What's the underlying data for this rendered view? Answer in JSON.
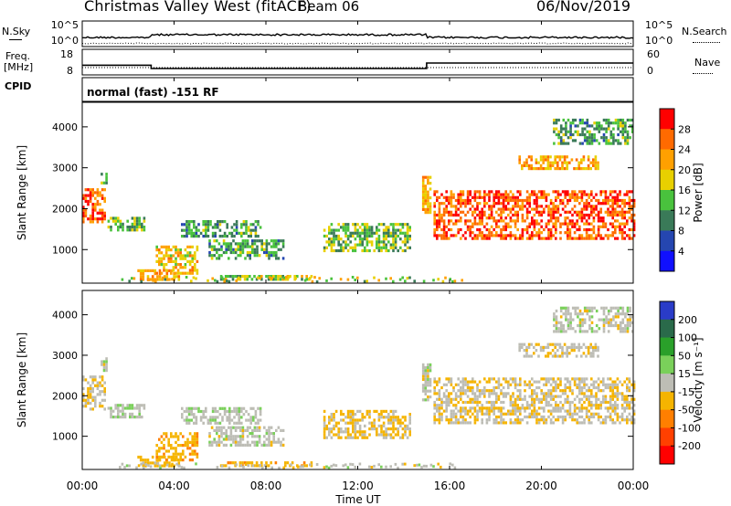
{
  "header": {
    "title": "Christmas Valley West (fitACF)",
    "beam": "Beam 06",
    "date": "06/Nov/2019"
  },
  "strips": {
    "nsky_label": "N.Sky",
    "nsky_ticks": [
      "10^5",
      "10^0"
    ],
    "nsearch_label": "N.Search",
    "nsearch_ticks": [
      "10^5",
      "10^0"
    ],
    "freq_label_1": "Freq.",
    "freq_label_2": "[MHz]",
    "freq_ticks": [
      "18",
      "8"
    ],
    "nave_label": "Nave",
    "nave_ticks": [
      "60",
      "0"
    ],
    "cpid_label": "CPID",
    "mode_text": "normal (fast) -151 RF"
  },
  "panels": {
    "power": {
      "ylabel": "Slant Range [km]",
      "yticks": [
        "4000",
        "3000",
        "2000",
        "1000"
      ],
      "cbar_label": "Power [dB]",
      "cbar_ticks": [
        "28",
        "24",
        "20",
        "16",
        "12",
        "8",
        "4"
      ],
      "cbar_colors": [
        "#ff0000",
        "#ff6a00",
        "#ffa000",
        "#e8d000",
        "#49c23d",
        "#3a7a58",
        "#2546b0",
        "#1010ff"
      ]
    },
    "velocity": {
      "ylabel": "Slant Range [km]",
      "yticks": [
        "4000",
        "3000",
        "2000",
        "1000"
      ],
      "cbar_label": "Velocity [m s⁻¹]",
      "cbar_ticks": [
        "200",
        "100",
        "50",
        "15",
        "-15",
        "-50",
        "-100",
        "-200"
      ],
      "cbar_colors": [
        "#2a3cc8",
        "#2a6a4a",
        "#2aa02a",
        "#7ad05a",
        "#bdbdb5",
        "#f5b400",
        "#ff7f00",
        "#ff4000",
        "#ff0000"
      ]
    }
  },
  "xaxis": {
    "label": "Time UT",
    "ticks": [
      "00:00",
      "04:00",
      "08:00",
      "12:00",
      "16:00",
      "20:00",
      "00:00"
    ]
  },
  "chart_data": {
    "type": "heatmap",
    "title": "Christmas Valley West (fitACF)",
    "beam": 6,
    "date": "06/Nov/2019",
    "xlabel": "Time UT",
    "ylabel": "Slant Range [km]",
    "x_range_hours": [
      0,
      24
    ],
    "y_range_km": [
      180,
      4600
    ],
    "frequency_segments_mhz": [
      {
        "start_hour": 0,
        "end_hour": 3,
        "freq": 12
      },
      {
        "start_hour": 3,
        "end_hour": 15,
        "freq": 10.5
      },
      {
        "start_hour": 15,
        "end_hour": 24,
        "freq": 13
      }
    ],
    "power_scale_db": [
      0,
      30
    ],
    "velocity_scale_ms": [
      -200,
      200
    ],
    "echo_regions": [
      {
        "t0": 0.0,
        "t1": 1.0,
        "r0": 1700,
        "r1": 2500,
        "power_db": 26,
        "velocity": -10
      },
      {
        "t0": 0.8,
        "t1": 1.1,
        "r0": 2600,
        "r1": 2950,
        "power_db": 14,
        "velocity": 0
      },
      {
        "t0": 1.1,
        "t1": 2.7,
        "r0": 1450,
        "r1": 1800,
        "power_db": 14,
        "velocity": 5
      },
      {
        "t0": 2.4,
        "t1": 4.2,
        "r0": 240,
        "r1": 520,
        "power_db": 22,
        "velocity": -30
      },
      {
        "t0": 3.2,
        "t1": 5.0,
        "r0": 400,
        "r1": 1100,
        "power_db": 20,
        "velocity": -40
      },
      {
        "t0": 4.3,
        "t1": 7.8,
        "r0": 1350,
        "r1": 1720,
        "power_db": 12,
        "velocity": 5
      },
      {
        "t0": 5.5,
        "t1": 8.8,
        "r0": 800,
        "r1": 1250,
        "power_db": 12,
        "velocity": 0
      },
      {
        "t0": 6.0,
        "t1": 10.0,
        "r0": 240,
        "r1": 380,
        "power_db": 16,
        "velocity": -40
      },
      {
        "t0": 10.5,
        "t1": 14.3,
        "r0": 1000,
        "r1": 1650,
        "power_db": 14,
        "velocity": -20
      },
      {
        "t0": 14.8,
        "t1": 15.2,
        "r0": 1900,
        "r1": 2800,
        "power_db": 22,
        "velocity": 0
      },
      {
        "t0": 15.3,
        "t1": 24.0,
        "r0": 1300,
        "r1": 2450,
        "power_db": 27,
        "velocity": -10
      },
      {
        "t0": 19.0,
        "t1": 22.5,
        "r0": 2950,
        "r1": 3300,
        "power_db": 22,
        "velocity": -5
      },
      {
        "t0": 20.5,
        "t1": 24.0,
        "r0": 3600,
        "r1": 4200,
        "power_db": 12,
        "velocity": 0
      }
    ]
  }
}
